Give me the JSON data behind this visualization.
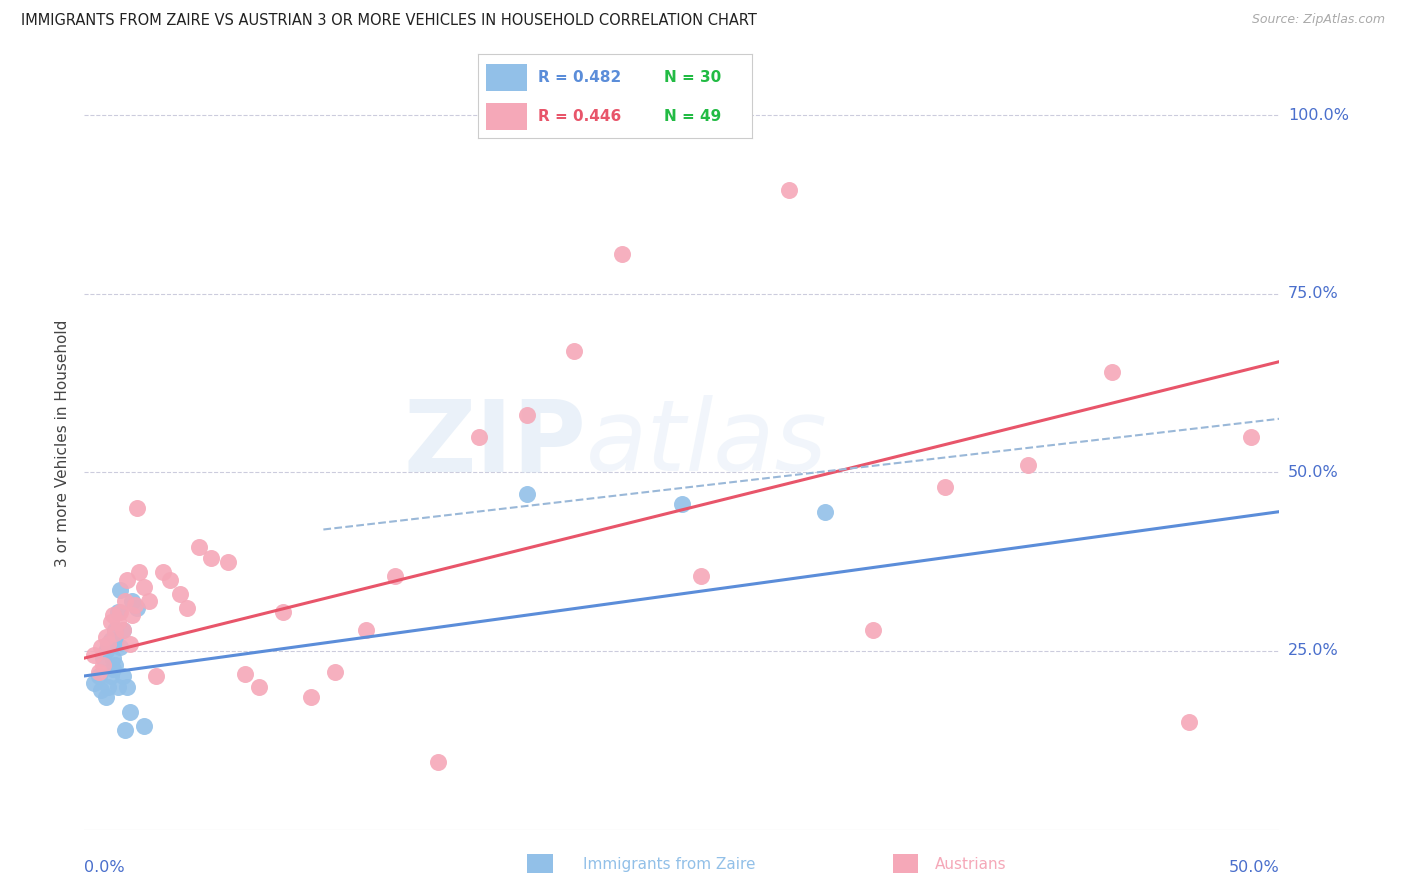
{
  "title": "IMMIGRANTS FROM ZAIRE VS AUSTRIAN 3 OR MORE VEHICLES IN HOUSEHOLD CORRELATION CHART",
  "source": "Source: ZipAtlas.com",
  "ylabel": "3 or more Vehicles in Household",
  "ytick_labels": [
    "25.0%",
    "50.0%",
    "75.0%",
    "100.0%"
  ],
  "ytick_values": [
    0.25,
    0.5,
    0.75,
    1.0
  ],
  "xtick_labels": [
    "0.0%",
    "50.0%"
  ],
  "xlim": [
    0.0,
    0.5
  ],
  "ylim": [
    0.0,
    1.08
  ],
  "legend_blue_r": "R = 0.482",
  "legend_blue_n": "N = 30",
  "legend_pink_r": "R = 0.446",
  "legend_pink_n": "N = 49",
  "blue_color": "#92c0e8",
  "pink_color": "#f5a8b8",
  "blue_line_color": "#5b8dd9",
  "pink_line_color": "#e8556a",
  "dashed_line_color": "#9ab8d8",
  "axis_label_color": "#4a6fcc",
  "n_color": "#22bb44",
  "blue_points_x": [
    0.004,
    0.006,
    0.007,
    0.008,
    0.009,
    0.009,
    0.01,
    0.01,
    0.011,
    0.011,
    0.012,
    0.012,
    0.013,
    0.013,
    0.013,
    0.014,
    0.014,
    0.015,
    0.015,
    0.016,
    0.016,
    0.017,
    0.018,
    0.019,
    0.02,
    0.022,
    0.025,
    0.185,
    0.25,
    0.31
  ],
  "blue_points_y": [
    0.205,
    0.215,
    0.195,
    0.24,
    0.185,
    0.25,
    0.2,
    0.26,
    0.215,
    0.265,
    0.225,
    0.24,
    0.23,
    0.265,
    0.28,
    0.2,
    0.305,
    0.335,
    0.255,
    0.215,
    0.28,
    0.14,
    0.2,
    0.165,
    0.32,
    0.31,
    0.145,
    0.47,
    0.455,
    0.445
  ],
  "pink_points_x": [
    0.004,
    0.006,
    0.007,
    0.008,
    0.009,
    0.01,
    0.011,
    0.012,
    0.013,
    0.014,
    0.015,
    0.016,
    0.017,
    0.018,
    0.019,
    0.02,
    0.021,
    0.022,
    0.023,
    0.025,
    0.027,
    0.03,
    0.033,
    0.036,
    0.04,
    0.043,
    0.048,
    0.053,
    0.06,
    0.067,
    0.073,
    0.083,
    0.095,
    0.105,
    0.118,
    0.13,
    0.148,
    0.165,
    0.185,
    0.205,
    0.225,
    0.258,
    0.295,
    0.33,
    0.36,
    0.395,
    0.43,
    0.462,
    0.488
  ],
  "pink_points_y": [
    0.245,
    0.22,
    0.255,
    0.23,
    0.27,
    0.26,
    0.29,
    0.3,
    0.275,
    0.29,
    0.305,
    0.28,
    0.32,
    0.35,
    0.26,
    0.3,
    0.315,
    0.45,
    0.36,
    0.34,
    0.32,
    0.215,
    0.36,
    0.35,
    0.33,
    0.31,
    0.395,
    0.38,
    0.375,
    0.218,
    0.2,
    0.305,
    0.185,
    0.22,
    0.28,
    0.355,
    0.095,
    0.55,
    0.58,
    0.67,
    0.805,
    0.355,
    0.895,
    0.28,
    0.48,
    0.51,
    0.64,
    0.15,
    0.55
  ],
  "blue_line_x0": 0.0,
  "blue_line_x1": 0.5,
  "blue_line_y0": 0.215,
  "blue_line_y1": 0.445,
  "pink_line_x0": 0.0,
  "pink_line_x1": 0.5,
  "pink_line_y0": 0.24,
  "pink_line_y1": 0.655,
  "dashed_line_x0": 0.1,
  "dashed_line_x1": 0.5,
  "dashed_line_y0": 0.42,
  "dashed_line_y1": 0.575,
  "watermark_zip": "ZIP",
  "watermark_atlas": "atlas"
}
